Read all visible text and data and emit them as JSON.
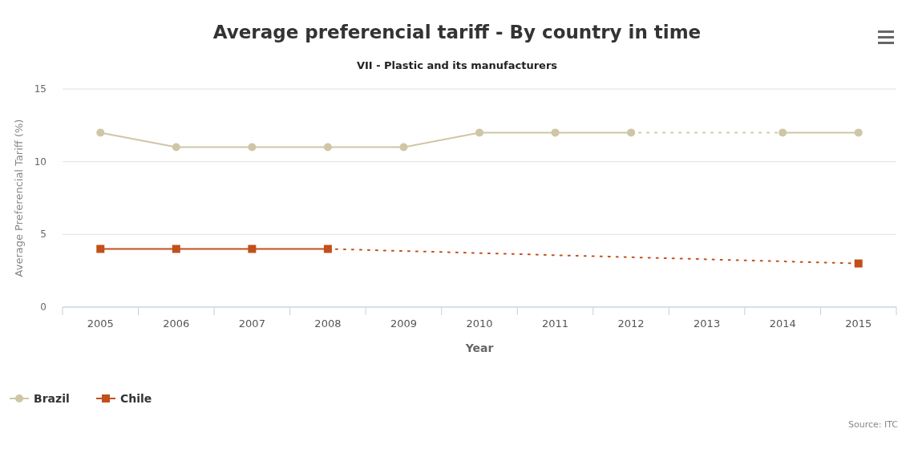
{
  "chart_data": {
    "type": "line",
    "title": "Average preferencial tariff - By country in time",
    "subtitle": "VII - Plastic and its manufacturers",
    "xlabel": "Year",
    "ylabel": "Average Preferencial Tariff (%)",
    "categories": [
      "2005",
      "2006",
      "2007",
      "2008",
      "2009",
      "2010",
      "2011",
      "2012",
      "2013",
      "2014",
      "2015"
    ],
    "series": [
      {
        "name": "Brazil",
        "color": "#cfc6a6",
        "marker": "circle",
        "values": [
          12,
          11,
          11,
          11,
          11,
          12,
          12,
          12,
          null,
          12,
          12
        ]
      },
      {
        "name": "Chile",
        "color": "#c1501a",
        "marker": "square",
        "values": [
          4,
          4,
          4,
          4,
          null,
          null,
          null,
          null,
          null,
          null,
          3
        ]
      }
    ],
    "ylim": [
      0,
      15
    ],
    "yticks": [
      0,
      5,
      10,
      15
    ],
    "grid": "y",
    "legend": "bottom left",
    "annotations": [
      "Source: ITC"
    ]
  }
}
